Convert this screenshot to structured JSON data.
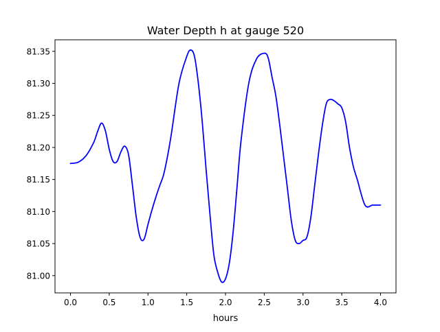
{
  "chart_data": {
    "type": "line",
    "title": "Water Depth h at gauge 520",
    "xlabel": "hours",
    "ylabel": "",
    "xlim": [
      -0.2,
      4.2
    ],
    "ylim": [
      80.973,
      81.368
    ],
    "xticks": [
      0.0,
      0.5,
      1.0,
      1.5,
      2.0,
      2.5,
      3.0,
      3.5,
      4.0
    ],
    "xtick_labels": [
      "0.0",
      "0.5",
      "1.0",
      "1.5",
      "2.0",
      "2.5",
      "3.0",
      "3.5",
      "4.0"
    ],
    "yticks": [
      81.0,
      81.05,
      81.1,
      81.15,
      81.2,
      81.25,
      81.3,
      81.35
    ],
    "ytick_labels": [
      "81.00",
      "81.05",
      "81.10",
      "81.15",
      "81.20",
      "81.25",
      "81.30",
      "81.35"
    ],
    "grid": false,
    "series": [
      {
        "color": "#0000ff",
        "x": [
          0.0,
          0.1,
          0.2,
          0.3,
          0.35,
          0.4,
          0.45,
          0.5,
          0.55,
          0.6,
          0.65,
          0.7,
          0.75,
          0.8,
          0.85,
          0.9,
          0.95,
          1.0,
          1.05,
          1.1,
          1.15,
          1.2,
          1.25,
          1.3,
          1.4,
          1.5,
          1.55,
          1.6,
          1.65,
          1.7,
          1.75,
          1.8,
          1.85,
          1.9,
          1.95,
          2.0,
          2.05,
          2.1,
          2.15,
          2.2,
          2.3,
          2.4,
          2.5,
          2.55,
          2.6,
          2.65,
          2.7,
          2.75,
          2.8,
          2.85,
          2.9,
          2.95,
          3.0,
          3.05,
          3.1,
          3.15,
          3.2,
          3.25,
          3.3,
          3.35,
          3.4,
          3.45,
          3.5,
          3.55,
          3.6,
          3.65,
          3.7,
          3.8,
          3.9,
          4.0
        ],
        "y": [
          81.175,
          81.177,
          81.187,
          81.208,
          81.225,
          81.238,
          81.226,
          81.197,
          81.178,
          81.178,
          81.193,
          81.202,
          81.188,
          81.14,
          81.09,
          81.059,
          81.057,
          81.08,
          81.102,
          81.122,
          81.14,
          81.157,
          81.185,
          81.22,
          81.3,
          81.342,
          81.352,
          81.342,
          81.3,
          81.24,
          81.165,
          81.095,
          81.032,
          81.005,
          80.99,
          80.995,
          81.02,
          81.07,
          81.14,
          81.21,
          81.3,
          81.338,
          81.347,
          81.34,
          81.31,
          81.28,
          81.235,
          81.185,
          81.135,
          81.085,
          81.055,
          81.05,
          81.055,
          81.06,
          81.09,
          81.14,
          81.19,
          81.235,
          81.268,
          81.275,
          81.273,
          81.268,
          81.262,
          81.24,
          81.2,
          81.17,
          81.15,
          81.11,
          81.11,
          81.11
        ]
      }
    ]
  }
}
